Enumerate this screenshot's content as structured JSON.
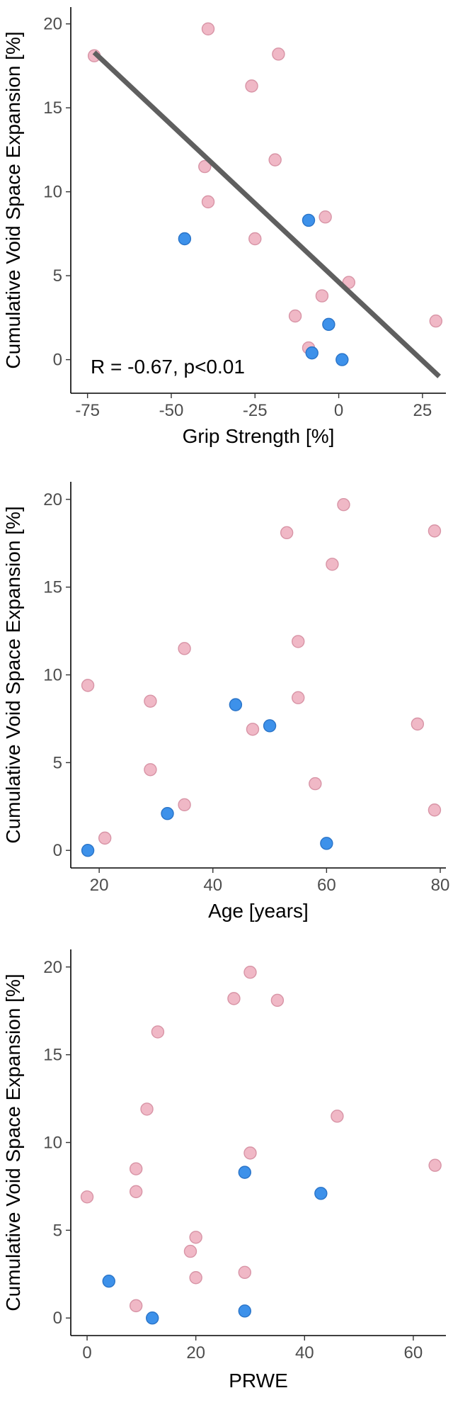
{
  "colors": {
    "pink_fill": "#f0b8c6",
    "pink_stroke": "#d894a6",
    "blue_fill": "#3d91ea",
    "blue_stroke": "#2a74c8",
    "fit_line": "#5f5f5f"
  },
  "chart_data": [
    {
      "type": "scatter",
      "title": "",
      "xlabel": "Grip Strength [%]",
      "ylabel": "Cumulative Void Space Expansion [%]",
      "xlim": [
        -80,
        32
      ],
      "ylim": [
        -2,
        21
      ],
      "xticks": [
        -75,
        -50,
        -25,
        0,
        25
      ],
      "xtick_labels": [
        "-75",
        "-50",
        "-25",
        "0",
        "25"
      ],
      "yticks": [
        0,
        5,
        10,
        15,
        20
      ],
      "ytick_labels": [
        "0",
        "5",
        "10",
        "15",
        "20"
      ],
      "annotation": "R = -0.67, p<0.01",
      "fit_line": {
        "x": [
          -73,
          30
        ],
        "y": [
          18.3,
          -1.0
        ]
      },
      "series": [
        {
          "name": "pink",
          "points": [
            [
              -73,
              18.1
            ],
            [
              -39,
              19.7
            ],
            [
              -18,
              18.2
            ],
            [
              -26,
              16.3
            ],
            [
              -40,
              11.5
            ],
            [
              -19,
              11.9
            ],
            [
              -39,
              9.4
            ],
            [
              -4,
              8.5
            ],
            [
              -25,
              7.2
            ],
            [
              3,
              4.6
            ],
            [
              -5,
              3.8
            ],
            [
              -13,
              2.6
            ],
            [
              29,
              2.3
            ],
            [
              -9,
              0.7
            ]
          ]
        },
        {
          "name": "blue",
          "points": [
            [
              -46,
              7.2
            ],
            [
              -9,
              8.3
            ],
            [
              -3,
              2.1
            ],
            [
              -8,
              0.4
            ],
            [
              1,
              0.0
            ]
          ]
        }
      ]
    },
    {
      "type": "scatter",
      "title": "",
      "xlabel": "Age [years]",
      "ylabel": "Cumulative Void Space Expansion [%]",
      "xlim": [
        15,
        81
      ],
      "ylim": [
        -1,
        21
      ],
      "xticks": [
        20,
        40,
        60,
        80
      ],
      "xtick_labels": [
        "20",
        "40",
        "60",
        "80"
      ],
      "yticks": [
        0,
        5,
        10,
        15,
        20
      ],
      "ytick_labels": [
        "0",
        "5",
        "10",
        "15",
        "20"
      ],
      "series": [
        {
          "name": "pink",
          "points": [
            [
              63,
              19.7
            ],
            [
              79,
              18.2
            ],
            [
              53,
              18.1
            ],
            [
              61,
              16.3
            ],
            [
              35,
              11.5
            ],
            [
              55,
              11.9
            ],
            [
              18,
              9.4
            ],
            [
              29,
              8.5
            ],
            [
              55,
              8.7
            ],
            [
              76,
              7.2
            ],
            [
              47,
              6.9
            ],
            [
              29,
              4.6
            ],
            [
              58,
              3.8
            ],
            [
              35,
              2.6
            ],
            [
              79,
              2.3
            ],
            [
              21,
              0.7
            ]
          ]
        },
        {
          "name": "blue",
          "points": [
            [
              44,
              8.3
            ],
            [
              50,
              7.1
            ],
            [
              32,
              2.1
            ],
            [
              60,
              0.4
            ],
            [
              18,
              0.0
            ]
          ]
        }
      ]
    },
    {
      "type": "scatter",
      "title": "",
      "xlabel": "PRWE",
      "ylabel": "Cumulative Void Space Expansion [%]",
      "xlim": [
        -3,
        66
      ],
      "ylim": [
        -1,
        21
      ],
      "xticks": [
        0,
        20,
        40,
        60
      ],
      "xtick_labels": [
        "0",
        "20",
        "40",
        "60"
      ],
      "yticks": [
        0,
        5,
        10,
        15,
        20
      ],
      "ytick_labels": [
        "0",
        "5",
        "10",
        "15",
        "20"
      ],
      "series": [
        {
          "name": "pink",
          "points": [
            [
              30,
              19.7
            ],
            [
              27,
              18.2
            ],
            [
              35,
              18.1
            ],
            [
              13,
              16.3
            ],
            [
              11,
              11.9
            ],
            [
              46,
              11.5
            ],
            [
              30,
              9.4
            ],
            [
              64,
              8.7
            ],
            [
              9,
              8.5
            ],
            [
              9,
              7.2
            ],
            [
              0,
              6.9
            ],
            [
              20,
              4.6
            ],
            [
              19,
              3.8
            ],
            [
              29,
              2.6
            ],
            [
              20,
              2.3
            ],
            [
              9,
              0.7
            ]
          ]
        },
        {
          "name": "blue",
          "points": [
            [
              29,
              8.3
            ],
            [
              43,
              7.1
            ],
            [
              4,
              2.1
            ],
            [
              12,
              0.0
            ],
            [
              29,
              0.4
            ]
          ]
        }
      ]
    }
  ]
}
